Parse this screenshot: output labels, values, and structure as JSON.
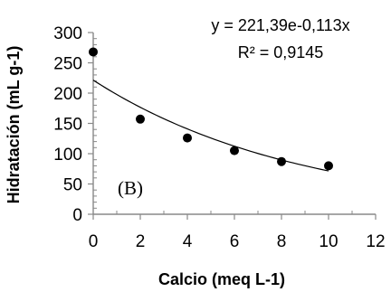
{
  "chart_data": {
    "type": "scatter",
    "xlabel": "Calcio (meq L-1)",
    "ylabel": "Hidratación (mL g-1)",
    "xlim": [
      0,
      12
    ],
    "ylim": [
      0,
      300
    ],
    "xticks": [
      0,
      2,
      4,
      6,
      8,
      10,
      12
    ],
    "yticks": [
      0,
      50,
      100,
      150,
      200,
      250,
      300
    ],
    "grid": false,
    "series": [
      {
        "x": [
          0,
          2,
          4,
          6,
          8,
          10
        ],
        "y": [
          268,
          157,
          126,
          105,
          87,
          80
        ],
        "marker": "circle",
        "color": "#000000"
      }
    ],
    "trendline": {
      "kind": "exponential",
      "a": 221.39,
      "b": -0.113,
      "x_range": [
        0,
        10
      ],
      "equation_text": "y = 221,39e-0,113x",
      "r2_text": "R² = 0,9145",
      "color": "#000000"
    },
    "panel_label": "(B)"
  }
}
